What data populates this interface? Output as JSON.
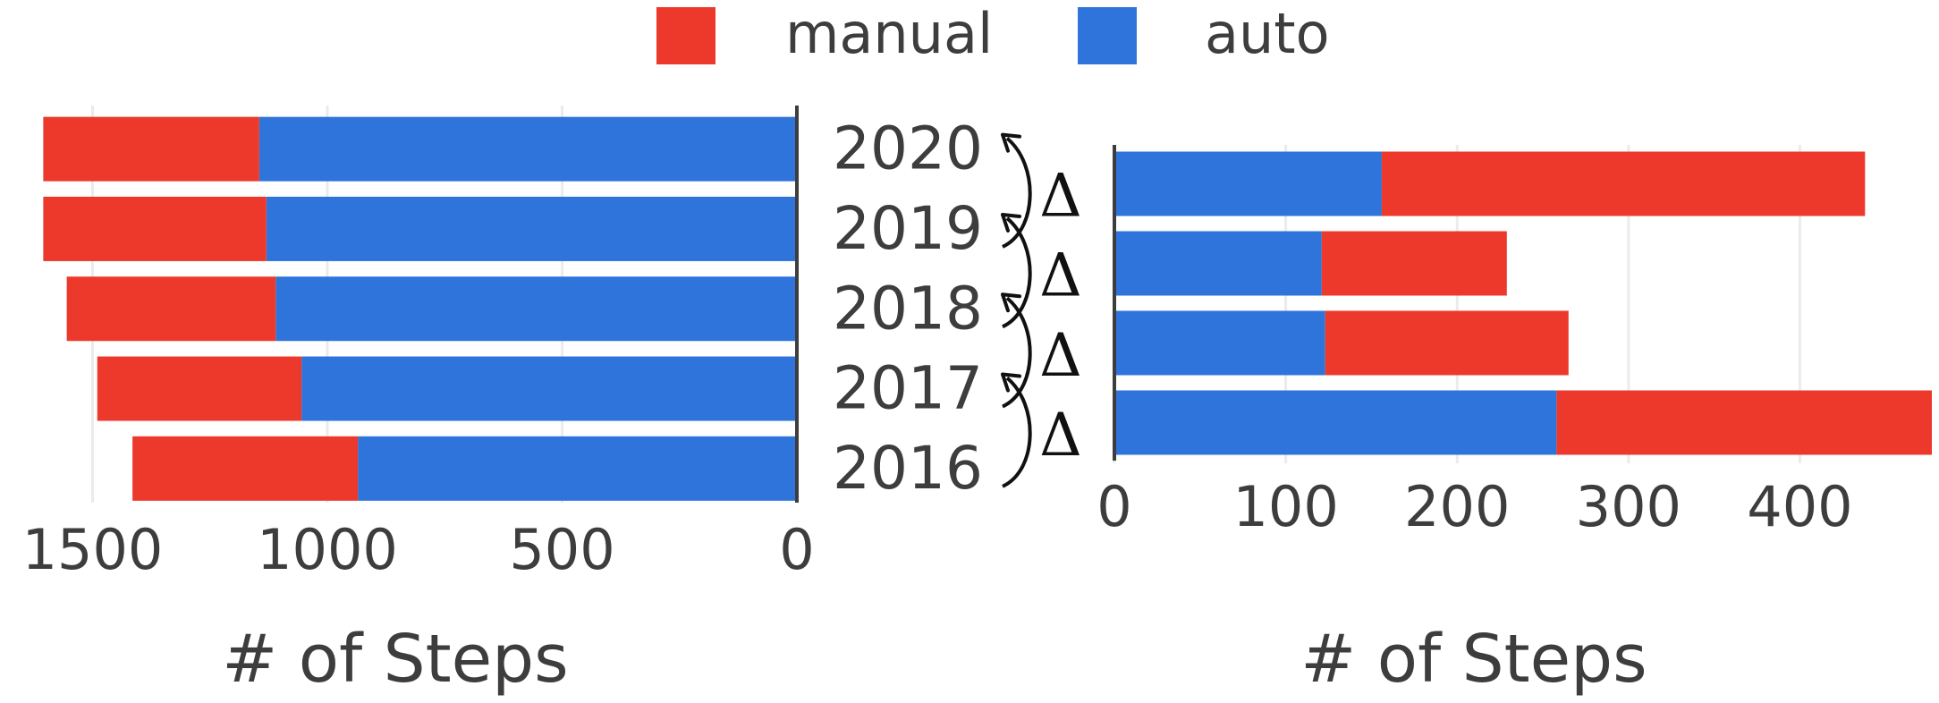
{
  "legend": {
    "items": [
      {
        "label": "manual",
        "color": "#ec392c"
      },
      {
        "label": "auto",
        "color": "#2e74db"
      }
    ]
  },
  "delta_symbol": "Δ",
  "chart_data": [
    {
      "type": "bar",
      "orientation": "horizontal",
      "stacked": true,
      "x_reversed": true,
      "categories": [
        "2016",
        "2017",
        "2018",
        "2019",
        "2020"
      ],
      "series": [
        {
          "name": "auto",
          "color": "#2e74db",
          "values": [
            935,
            1055,
            1110,
            1130,
            1145
          ]
        },
        {
          "name": "manual",
          "color": "#ec392c",
          "values": [
            480,
            435,
            445,
            475,
            460
          ]
        }
      ],
      "xlim": [
        0,
        1640
      ],
      "xticks": [
        1500,
        1000,
        500,
        0
      ],
      "xlabel": "# of Steps",
      "grid": true
    },
    {
      "type": "bar",
      "orientation": "horizontal",
      "stacked": true,
      "categories": [
        "2016-2017",
        "2017-2018",
        "2018-2019",
        "2019-2020"
      ],
      "series": [
        {
          "name": "auto",
          "color": "#2e74db",
          "values": [
            258,
            123,
            121,
            156
          ]
        },
        {
          "name": "manual",
          "color": "#ec392c",
          "values": [
            219,
            142,
            108,
            282
          ]
        }
      ],
      "xlim": [
        0,
        477
      ],
      "xticks": [
        0,
        100,
        200,
        300,
        400
      ],
      "xlabel": "# of Steps",
      "grid": true
    }
  ]
}
